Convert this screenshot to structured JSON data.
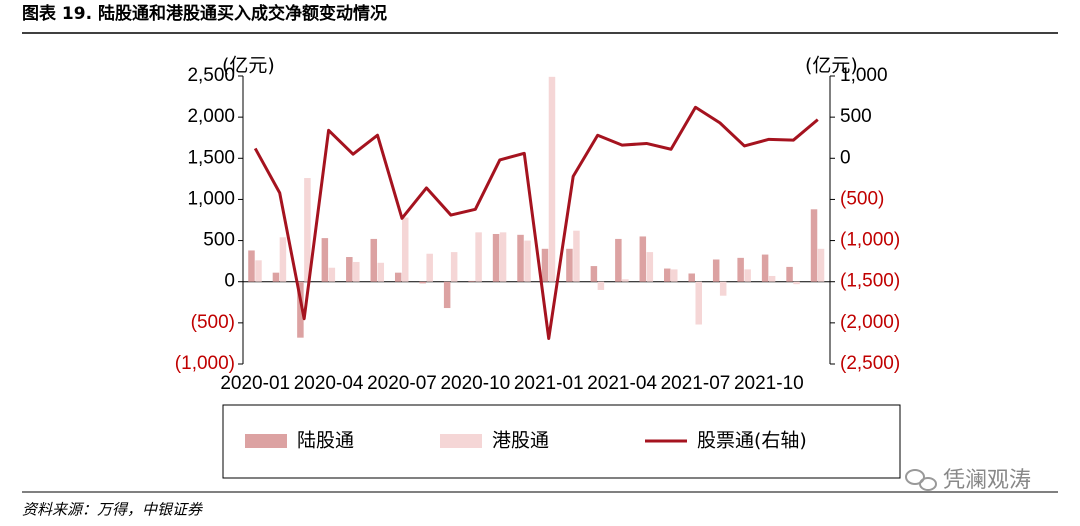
{
  "chart_data": {
    "type": "bar_line",
    "title": "图表 19. 陆股通和港股通买入成交净额变动情况",
    "ylabel": "(亿元)",
    "y2label": "(亿元)",
    "categories": [
      "2020-01",
      null,
      null,
      "2020-04",
      null,
      null,
      "2020-07",
      null,
      null,
      "2020-10",
      null,
      null,
      "2021-01",
      null,
      null,
      "2021-04",
      null,
      null,
      "2021-07",
      null,
      null,
      "2021-10",
      null,
      null
    ],
    "series": [
      {
        "name": "陆股通",
        "type": "bar",
        "color": "#dca2a2",
        "values": [
          380,
          110,
          -680,
          530,
          300,
          520,
          110,
          -20,
          -320,
          10,
          580,
          570,
          400,
          400,
          190,
          520,
          550,
          160,
          100,
          270,
          290,
          330,
          180,
          880
        ]
      },
      {
        "name": "港股通",
        "type": "bar",
        "color": "#f5d6d6",
        "values": [
          260,
          540,
          1260,
          170,
          240,
          230,
          780,
          340,
          360,
          600,
          600,
          500,
          2490,
          620,
          -100,
          30,
          360,
          150,
          -520,
          -170,
          150,
          70,
          -30,
          400
        ]
      },
      {
        "name": "股票通(右轴)",
        "type": "line",
        "axis": "y2",
        "color": "#a5131f",
        "values": [
          120,
          -420,
          -1950,
          340,
          50,
          280,
          -730,
          -360,
          -690,
          -620,
          -20,
          60,
          -2190,
          -220,
          280,
          160,
          180,
          110,
          620,
          430,
          150,
          230,
          220,
          470
        ]
      }
    ],
    "ylim": [
      -1000,
      2500
    ],
    "yticks": [
      {
        "value": -1000,
        "label": "(1,000)"
      },
      {
        "value": -500,
        "label": "(500)"
      },
      0,
      500,
      {
        "value": 1000,
        "label": "1,000"
      },
      {
        "value": 1500,
        "label": "1,500"
      },
      {
        "value": 2000,
        "label": "2,000"
      },
      {
        "value": 2500,
        "label": "2,500"
      }
    ],
    "y2lim": [
      -2500,
      1000
    ],
    "y2ticks": [
      {
        "value": -2500,
        "label": "(2,500)"
      },
      {
        "value": -2000,
        "label": "(2,000)"
      },
      {
        "value": -1500,
        "label": "(1,500)"
      },
      {
        "value": -1000,
        "label": "(1,000)"
      },
      {
        "value": -500,
        "label": "(500)"
      },
      0,
      500,
      {
        "value": 1000,
        "label": "1,000"
      }
    ],
    "negative_tick_color": "#c00000",
    "legend": "bottom"
  },
  "source": "资料来源：万得，中银证券",
  "watermark": "凭澜观涛"
}
